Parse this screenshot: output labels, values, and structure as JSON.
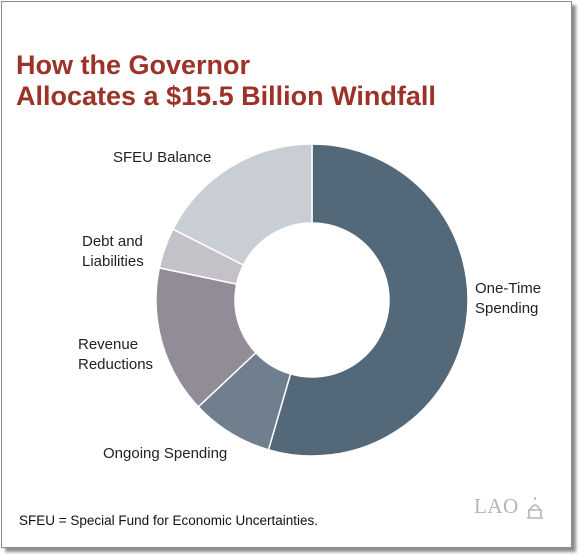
{
  "chart_data": {
    "type": "pie",
    "title": "How the Governor Allocates a $15.5 Billion Windfall",
    "title_lines": [
      "How the Governor",
      "Allocates a $15.5 Billion Windfall"
    ],
    "series": [
      {
        "name": "One-Time Spending",
        "label_lines": [
          "One-Time",
          "Spending"
        ],
        "value": 54.5,
        "color": "#536878"
      },
      {
        "name": "Ongoing Spending",
        "label_lines": [
          "Ongoing Spending"
        ],
        "value": 8.5,
        "color": "#6f7f8d"
      },
      {
        "name": "Revenue Reductions",
        "label_lines": [
          "Revenue",
          "Reductions"
        ],
        "value": 15.3,
        "color": "#918c98"
      },
      {
        "name": "Debt and Liabilities",
        "label_lines": [
          "Debt and",
          "Liabilities"
        ],
        "value": 4.2,
        "color": "#c4c2c8"
      },
      {
        "name": "SFEU Balance",
        "label_lines": [
          "SFEU Balance"
        ],
        "value": 17.5,
        "color": "#c9ced4"
      }
    ],
    "donut": true,
    "legend": "none (direct labels)"
  },
  "footnote": "SFEU = Special Fund for Economic Uncertainties.",
  "logo_text": "LAO"
}
